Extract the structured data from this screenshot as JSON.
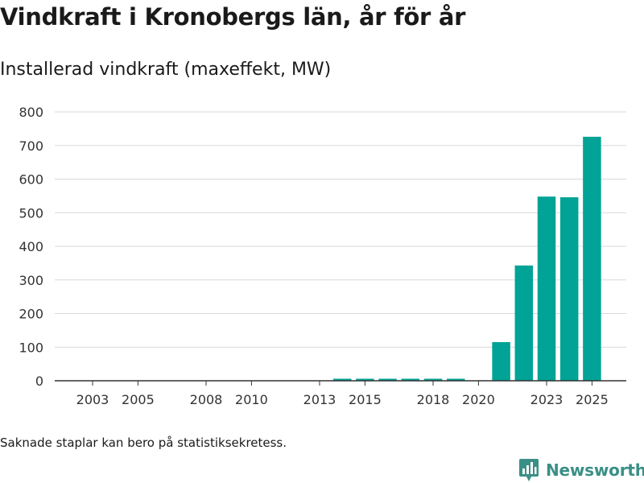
{
  "header": {
    "title": "Vindkraft i Kronobergs län, år för år",
    "subtitle": "Installerad vindkraft (maxeffekt, MW)"
  },
  "chart_data": {
    "type": "bar",
    "title": "Vindkraft i Kronobergs län, år för år",
    "subtitle": "Installerad vindkraft (maxeffekt, MW)",
    "xlabel": "",
    "ylabel": "Installerad vindkraft (maxeffekt, MW)",
    "categories": [
      "2003",
      "2004",
      "2005",
      "2006",
      "2007",
      "2008",
      "2009",
      "2010",
      "2011",
      "2012",
      "2013",
      "2014",
      "2015",
      "2016",
      "2017",
      "2018",
      "2019",
      "2020",
      "2021",
      "2022",
      "2023",
      "2024",
      "2025"
    ],
    "values": [
      0,
      0,
      0,
      0,
      0,
      0,
      0,
      0,
      0,
      0,
      0,
      6,
      6,
      6,
      6,
      6,
      6,
      0,
      115,
      343,
      548,
      546,
      726
    ],
    "x_tick_labels": [
      "2003",
      "2005",
      "2008",
      "2010",
      "2013",
      "2015",
      "2018",
      "2020",
      "2023",
      "2025"
    ],
    "y_ticks": [
      0,
      100,
      200,
      300,
      400,
      500,
      600,
      700,
      800
    ],
    "ylim": [
      0,
      800
    ],
    "grid": true,
    "bar_color": "#00a396"
  },
  "footer": {
    "note": "Saknade staplar kan bero på statistiksekretess.",
    "brand": "Newsworthy",
    "brand_color": "#3a8f86",
    "brand_icon": "newsworthy-bar-chart-icon"
  }
}
